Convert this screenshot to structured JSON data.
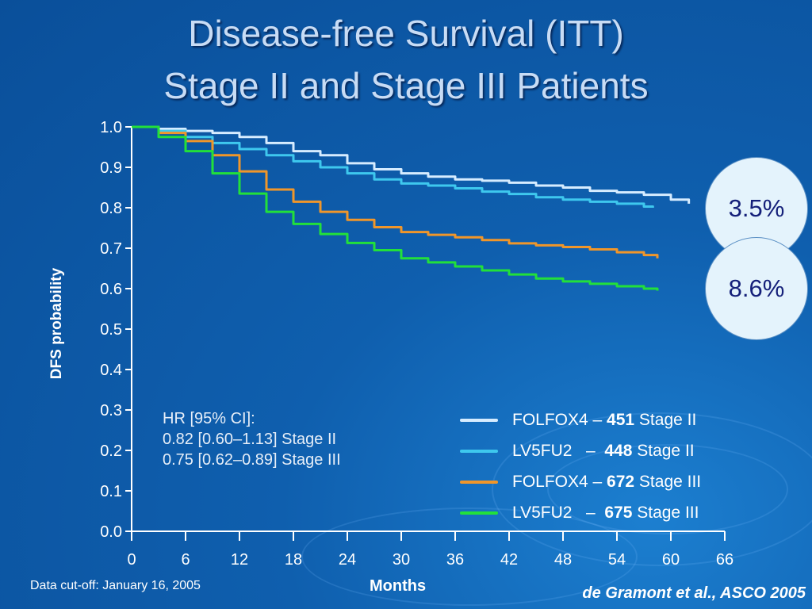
{
  "title": {
    "line1": "Disease-free Survival (ITT)",
    "line2": "Stage II and Stage III Patients"
  },
  "hr_text": {
    "header": "HR [95% CI]:",
    "line1": "0.82 [0.60–1.13] Stage II",
    "line2": "0.75 [0.62–0.89] Stage III"
  },
  "badges": [
    "3.5%",
    "8.6%"
  ],
  "footer": {
    "cutoff": "Data cut-off: January 16, 2005",
    "citation": "de Gramont et al., ASCO 2005"
  },
  "colors": {
    "axis": "#ffffff",
    "background": "#0f5fae",
    "badge_text": "#15207a"
  },
  "chart_data": {
    "type": "line",
    "title": "",
    "xlabel": "Months",
    "ylabel": "DFS probability",
    "xlim": [
      0,
      66
    ],
    "ylim": [
      0,
      1
    ],
    "xticks": [
      0,
      6,
      12,
      18,
      24,
      30,
      36,
      42,
      48,
      54,
      60,
      66
    ],
    "yticks": [
      "0.0",
      "0.1",
      "0.2",
      "0.3",
      "0.4",
      "0.5",
      "0.6",
      "0.7",
      "0.8",
      "0.9",
      "1.0"
    ],
    "grid": false,
    "legend_position": "bottom-right",
    "series": [
      {
        "legend_prefix": "FOLFOX4 – ",
        "n": "451",
        "legend_suffix": " Stage II",
        "color": "#d6ecff",
        "x": [
          0,
          3,
          6,
          9,
          12,
          15,
          18,
          21,
          24,
          27,
          30,
          33,
          36,
          39,
          42,
          45,
          48,
          51,
          54,
          57,
          60,
          62
        ],
        "y": [
          1.0,
          0.995,
          0.99,
          0.985,
          0.975,
          0.96,
          0.94,
          0.93,
          0.91,
          0.895,
          0.885,
          0.877,
          0.87,
          0.867,
          0.862,
          0.855,
          0.85,
          0.842,
          0.838,
          0.832,
          0.82,
          0.81
        ]
      },
      {
        "legend_prefix": "LV5FU2   –  ",
        "n": "448",
        "legend_suffix": " Stage II",
        "color": "#3ec8ee",
        "x": [
          0,
          3,
          6,
          9,
          12,
          15,
          18,
          21,
          24,
          27,
          30,
          33,
          36,
          39,
          42,
          45,
          48,
          51,
          54,
          57,
          58
        ],
        "y": [
          1.0,
          0.99,
          0.975,
          0.96,
          0.945,
          0.93,
          0.915,
          0.9,
          0.885,
          0.87,
          0.86,
          0.855,
          0.848,
          0.84,
          0.834,
          0.826,
          0.82,
          0.815,
          0.81,
          0.803,
          0.8
        ]
      },
      {
        "legend_prefix": "FOLFOX4 – ",
        "n": "672",
        "legend_suffix": " Stage III",
        "color": "#f0962a",
        "x": [
          0,
          3,
          6,
          9,
          12,
          15,
          18,
          21,
          24,
          27,
          30,
          33,
          36,
          39,
          42,
          45,
          48,
          51,
          54,
          57,
          58.5
        ],
        "y": [
          1.0,
          0.985,
          0.965,
          0.93,
          0.89,
          0.845,
          0.815,
          0.79,
          0.77,
          0.752,
          0.74,
          0.733,
          0.727,
          0.72,
          0.712,
          0.707,
          0.703,
          0.697,
          0.69,
          0.683,
          0.675
        ]
      },
      {
        "legend_prefix": "LV5FU2   –  ",
        "n": "675",
        "legend_suffix": " Stage III",
        "color": "#22e03a",
        "x": [
          0,
          3,
          6,
          9,
          12,
          15,
          18,
          21,
          24,
          27,
          30,
          33,
          36,
          39,
          42,
          45,
          48,
          51,
          54,
          57,
          58.5
        ],
        "y": [
          1.0,
          0.975,
          0.94,
          0.885,
          0.835,
          0.79,
          0.76,
          0.735,
          0.713,
          0.695,
          0.675,
          0.665,
          0.655,
          0.645,
          0.635,
          0.625,
          0.618,
          0.612,
          0.606,
          0.6,
          0.595
        ]
      }
    ]
  }
}
